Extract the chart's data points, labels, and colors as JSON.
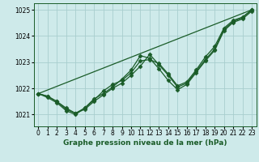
{
  "title": "Graphe pression niveau de la mer (hPa)",
  "background_color": "#ceeaea",
  "grid_color": "#a8cece",
  "line_color": "#1a5c28",
  "xlim": [
    -0.5,
    23.5
  ],
  "ylim": [
    1020.55,
    1025.25
  ],
  "xticks": [
    0,
    1,
    2,
    3,
    4,
    5,
    6,
    7,
    8,
    9,
    10,
    11,
    12,
    13,
    14,
    15,
    16,
    17,
    18,
    19,
    20,
    21,
    22,
    23
  ],
  "yticks": [
    1021,
    1022,
    1023,
    1024,
    1025
  ],
  "series": [
    {
      "x": [
        0,
        1,
        2,
        3,
        4,
        5,
        6,
        7,
        8,
        9,
        10,
        11,
        12,
        13,
        14,
        15,
        16,
        17,
        18,
        19,
        20,
        21,
        22,
        23
      ],
      "y": [
        1021.8,
        1021.7,
        1021.5,
        1021.2,
        1021.05,
        1021.2,
        1021.5,
        1021.75,
        1022.0,
        1022.2,
        1022.5,
        1022.85,
        1023.3,
        1022.9,
        1022.5,
        1022.05,
        1022.2,
        1022.65,
        1023.1,
        1023.5,
        1024.25,
        1024.55,
        1024.7,
        1025.0
      ],
      "has_markers": true
    },
    {
      "x": [
        0,
        1,
        2,
        3,
        4,
        5,
        6,
        7,
        8,
        9,
        10,
        11,
        12,
        13,
        14,
        15,
        16,
        17,
        18,
        19,
        20,
        21,
        22,
        23
      ],
      "y": [
        1021.8,
        1021.7,
        1021.5,
        1021.25,
        1021.05,
        1021.25,
        1021.55,
        1021.9,
        1022.15,
        1022.3,
        1022.6,
        1023.05,
        1023.1,
        1022.95,
        1022.55,
        1022.1,
        1022.25,
        1022.7,
        1023.2,
        1023.6,
        1024.3,
        1024.6,
        1024.72,
        1025.0
      ],
      "has_markers": true
    },
    {
      "x": [
        0,
        23
      ],
      "y": [
        1021.8,
        1025.0
      ],
      "has_markers": false
    },
    {
      "x": [
        0,
        1,
        2,
        3,
        4,
        5,
        6,
        7,
        8,
        9,
        10,
        11,
        12,
        13,
        14,
        15,
        16,
        17,
        18,
        19,
        20,
        21,
        22,
        23
      ],
      "y": [
        1021.8,
        1021.65,
        1021.45,
        1021.15,
        1021.0,
        1021.25,
        1021.6,
        1021.8,
        1022.05,
        1022.35,
        1022.7,
        1023.25,
        1023.15,
        1022.75,
        1022.3,
        1021.95,
        1022.15,
        1022.6,
        1023.05,
        1023.45,
        1024.2,
        1024.52,
        1024.65,
        1024.95
      ],
      "has_markers": true
    }
  ],
  "marker": "D",
  "markersize": 2.5,
  "linewidth": 0.9,
  "xlabel_fontsize": 6.5,
  "tick_fontsize": 5.5
}
